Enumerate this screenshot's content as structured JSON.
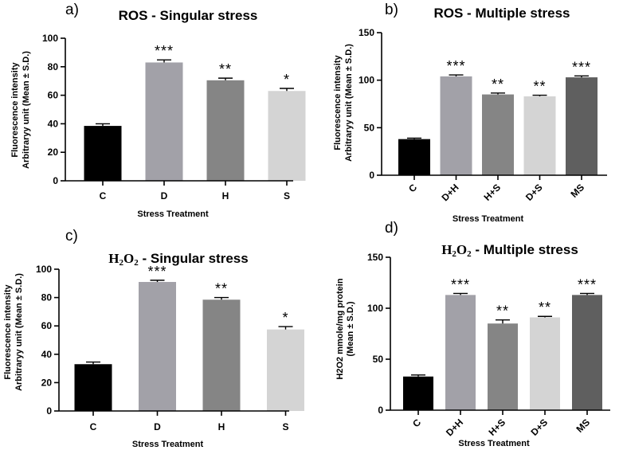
{
  "chart_data": [
    {
      "type": "bar",
      "panel_letter": "a)",
      "title": "ROS - Singular stress",
      "title_prefix": "",
      "title_sub": "",
      "title_tail": "",
      "xlabel": "Stress Treatment",
      "ylabel": [
        "Fluorescence intensity",
        "Arbitraryy unit (Mean ± S.D.)"
      ],
      "ylim": [
        0,
        100
      ],
      "yticks": [
        0,
        20,
        40,
        60,
        80,
        100
      ],
      "categories": [
        "C",
        "D",
        "H",
        "S"
      ],
      "values": [
        38.5,
        83,
        70.5,
        63
      ],
      "errors": [
        1.5,
        1.8,
        1.5,
        1.8
      ],
      "significance": [
        "",
        "***",
        "**",
        "*"
      ],
      "colors": [
        "#000000",
        "#a2a1a8",
        "#858585",
        "#d4d4d4"
      ]
    },
    {
      "type": "bar",
      "panel_letter": "b)",
      "title": "ROS - Multiple stress",
      "title_prefix": "",
      "title_sub": "",
      "title_tail": "",
      "xlabel": "Stress Treatment",
      "ylabel": [
        "Fluorescence intensity",
        "Arbitraryy unit (Mean ± S.D.)"
      ],
      "ylim": [
        0,
        150
      ],
      "yticks": [
        0,
        50,
        100,
        150
      ],
      "categories": [
        "C",
        "D+H",
        "H+S",
        "D+S",
        "MS"
      ],
      "values": [
        38,
        104,
        85,
        83,
        103
      ],
      "errors": [
        1,
        1.5,
        1.5,
        1.2,
        1.5
      ],
      "significance": [
        "",
        "***",
        "**",
        "**",
        "***"
      ],
      "colors": [
        "#000000",
        "#a2a1a8",
        "#858585",
        "#d4d4d4",
        "#5f5f5f"
      ]
    },
    {
      "type": "bar",
      "panel_letter": "c)",
      "title": "",
      "title_prefix": "H",
      "title_sub": "2",
      "title_mid": "O",
      "title_sub2": "2",
      "title_tail": " - Singular stress",
      "xlabel": "Stress Treatment",
      "ylabel": [
        "Fluorescence intensity",
        "Arbitraryy unit (Mean ± S.D.)"
      ],
      "ylim": [
        0,
        100
      ],
      "yticks": [
        0,
        20,
        40,
        60,
        80,
        100
      ],
      "categories": [
        "C",
        "D",
        "H",
        "S"
      ],
      "values": [
        33,
        91,
        78.5,
        57.5
      ],
      "errors": [
        1.5,
        1.2,
        1.5,
        2
      ],
      "significance": [
        "",
        "***",
        "**",
        "*"
      ],
      "colors": [
        "#000000",
        "#a2a1a8",
        "#858585",
        "#d4d4d4"
      ]
    },
    {
      "type": "bar",
      "panel_letter": "d)",
      "title": "",
      "title_prefix": "H",
      "title_sub": "2",
      "title_mid": "O",
      "title_sub2": "2",
      "title_tail": " - Multiple stress",
      "xlabel": "Stress Treatment",
      "ylabel": [
        "H2O2 mmole/mg protein",
        "(Mean ± S.D.)"
      ],
      "ylim": [
        0,
        150
      ],
      "yticks": [
        0,
        50,
        100,
        150
      ],
      "categories": [
        "C",
        "D+H",
        "H+S",
        "D+S",
        "MS"
      ],
      "values": [
        33,
        113,
        85,
        91,
        113
      ],
      "errors": [
        1.5,
        1.5,
        3.5,
        1,
        1.5
      ],
      "significance": [
        "",
        "***",
        "**",
        "**",
        "***"
      ],
      "colors": [
        "#000000",
        "#a2a1a8",
        "#858585",
        "#d4d4d4",
        "#5f5f5f"
      ]
    }
  ]
}
